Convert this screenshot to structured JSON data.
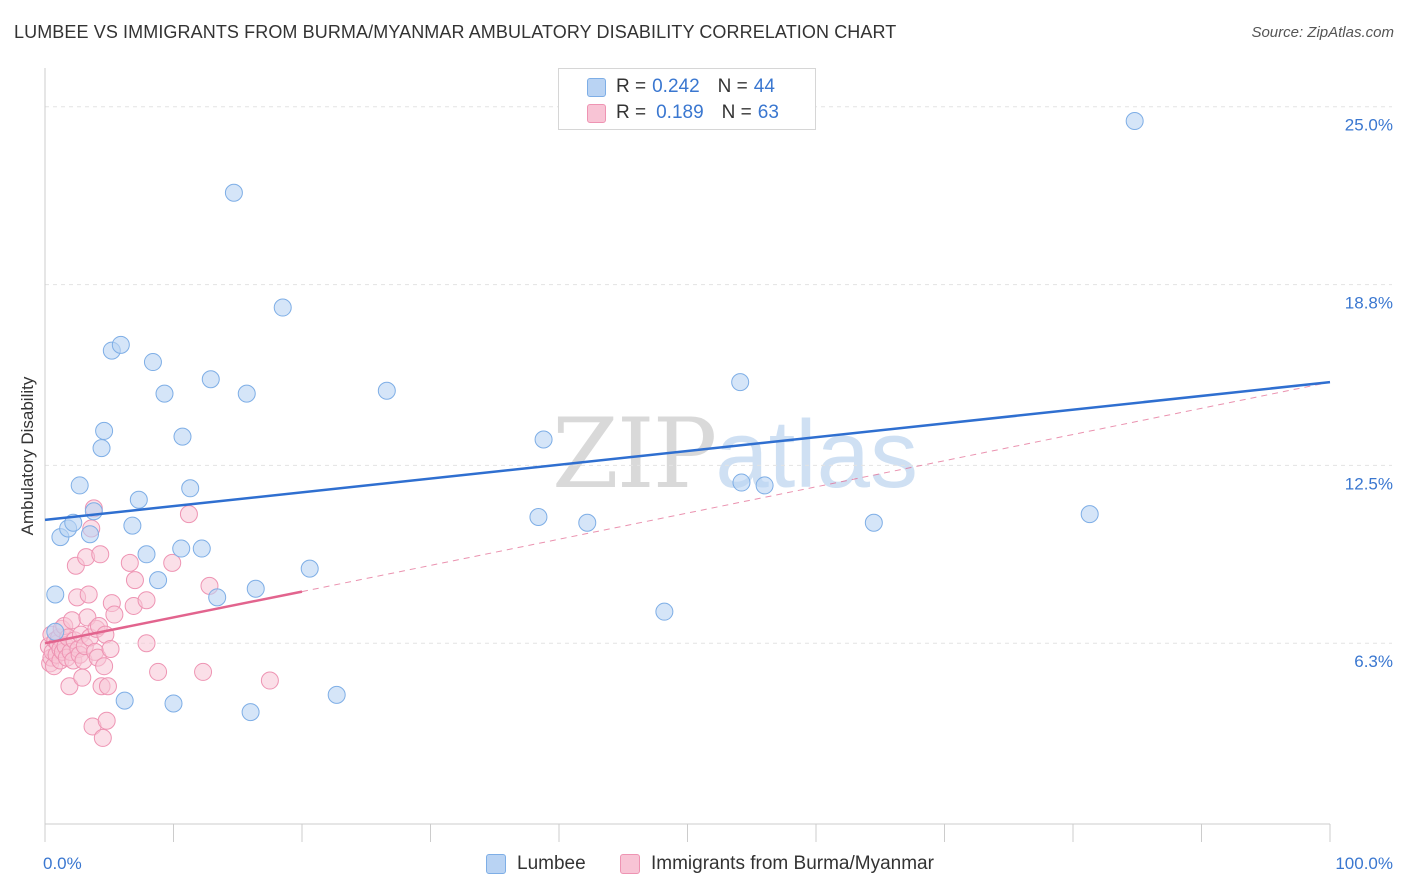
{
  "title": "LUMBEE VS IMMIGRANTS FROM BURMA/MYANMAR AMBULATORY DISABILITY CORRELATION CHART",
  "source": "Source: ZipAtlas.com",
  "watermark": {
    "zip": "ZIP",
    "atlas": "atlas"
  },
  "legend": {
    "r_label": "R =",
    "n_label": "N =",
    "rows": [
      {
        "r": "0.242",
        "n": "44"
      },
      {
        "r": "0.189",
        "n": "63"
      }
    ]
  },
  "colors": {
    "lumbee_fill": "#b9d3f3",
    "lumbee_stroke": "#7eaee6",
    "lumbee_line": "#2f6fd0",
    "burma_fill": "#f8c4d5",
    "burma_stroke": "#ee94b3",
    "burma_line": "#e2648e",
    "grid": "#e3e3e3",
    "axis_text": "#3a77d0"
  },
  "chart_data": {
    "type": "scatter",
    "title": "LUMBEE VS IMMIGRANTS FROM BURMA/MYANMAR AMBULATORY DISABILITY CORRELATION CHART",
    "xlabel": "",
    "ylabel": "Ambulatory Disability",
    "xlim": [
      0,
      100
    ],
    "ylim": [
      0,
      26
    ],
    "x_tick_labels": [
      "0.0%",
      "100.0%"
    ],
    "y_ticks": [
      6.3,
      12.5,
      18.8,
      25.0
    ],
    "y_tick_labels": [
      "6.3%",
      "12.5%",
      "18.8%",
      "25.0%"
    ],
    "grid": "horizontal dashed",
    "legend_position": "top-center",
    "series": [
      {
        "name": "Lumbee",
        "r": 0.242,
        "n": 44,
        "trend": {
          "x": [
            0,
            100
          ],
          "y": [
            10.6,
            15.4
          ]
        },
        "points": [
          [
            0.8,
            6.7
          ],
          [
            0.8,
            8.0
          ],
          [
            1.2,
            10.0
          ],
          [
            1.8,
            10.3
          ],
          [
            2.2,
            10.5
          ],
          [
            2.7,
            11.8
          ],
          [
            3.5,
            10.1
          ],
          [
            3.8,
            10.9
          ],
          [
            4.4,
            13.1
          ],
          [
            4.6,
            13.7
          ],
          [
            5.2,
            16.5
          ],
          [
            5.9,
            16.7
          ],
          [
            6.2,
            4.3
          ],
          [
            6.8,
            10.4
          ],
          [
            7.3,
            11.3
          ],
          [
            7.9,
            9.4
          ],
          [
            8.4,
            16.1
          ],
          [
            8.8,
            8.5
          ],
          [
            9.3,
            15.0
          ],
          [
            10.0,
            4.2
          ],
          [
            10.6,
            9.6
          ],
          [
            10.7,
            13.5
          ],
          [
            11.3,
            11.7
          ],
          [
            12.2,
            9.6
          ],
          [
            12.9,
            15.5
          ],
          [
            13.4,
            7.9
          ],
          [
            14.7,
            22.0
          ],
          [
            15.7,
            15.0
          ],
          [
            16.0,
            3.9
          ],
          [
            16.4,
            8.2
          ],
          [
            18.5,
            18.0
          ],
          [
            20.6,
            8.9
          ],
          [
            22.7,
            4.5
          ],
          [
            26.6,
            15.1
          ],
          [
            38.4,
            10.7
          ],
          [
            38.8,
            13.4
          ],
          [
            42.2,
            10.5
          ],
          [
            48.2,
            7.4
          ],
          [
            54.1,
            15.4
          ],
          [
            54.2,
            11.9
          ],
          [
            56.0,
            11.8
          ],
          [
            64.5,
            10.5
          ],
          [
            81.3,
            10.8
          ],
          [
            84.8,
            24.5
          ]
        ]
      },
      {
        "name": "Immigrants from Burma/Myanmar",
        "r": 0.189,
        "n": 63,
        "trend": {
          "x": [
            0,
            20
          ],
          "y": [
            6.3,
            8.1
          ]
        },
        "trend_extended": {
          "x": [
            20,
            100
          ],
          "y": [
            8.1,
            15.4
          ]
        },
        "points": [
          [
            0.3,
            6.2
          ],
          [
            0.4,
            5.6
          ],
          [
            0.5,
            6.6
          ],
          [
            0.5,
            5.8
          ],
          [
            0.6,
            6.0
          ],
          [
            0.7,
            5.5
          ],
          [
            0.8,
            6.4
          ],
          [
            0.9,
            5.9
          ],
          [
            1.0,
            6.3
          ],
          [
            1.1,
            6.5
          ],
          [
            1.2,
            5.7
          ],
          [
            1.2,
            6.1
          ],
          [
            1.3,
            6.8
          ],
          [
            1.4,
            6.0
          ],
          [
            1.5,
            6.9
          ],
          [
            1.6,
            6.2
          ],
          [
            1.7,
            5.8
          ],
          [
            1.8,
            6.5
          ],
          [
            1.9,
            4.8
          ],
          [
            2.0,
            6.0
          ],
          [
            2.1,
            7.1
          ],
          [
            2.2,
            5.7
          ],
          [
            2.3,
            6.4
          ],
          [
            2.4,
            9.0
          ],
          [
            2.5,
            7.9
          ],
          [
            2.6,
            6.1
          ],
          [
            2.7,
            5.9
          ],
          [
            2.8,
            6.6
          ],
          [
            2.9,
            5.1
          ],
          [
            3.0,
            5.7
          ],
          [
            3.1,
            6.2
          ],
          [
            3.2,
            9.3
          ],
          [
            3.3,
            7.2
          ],
          [
            3.4,
            8.0
          ],
          [
            3.5,
            6.5
          ],
          [
            3.6,
            10.3
          ],
          [
            3.7,
            3.4
          ],
          [
            3.8,
            11.0
          ],
          [
            3.9,
            6.0
          ],
          [
            4.0,
            6.8
          ],
          [
            4.1,
            5.8
          ],
          [
            4.2,
            6.9
          ],
          [
            4.3,
            9.4
          ],
          [
            4.4,
            4.8
          ],
          [
            4.5,
            3.0
          ],
          [
            4.6,
            5.5
          ],
          [
            4.7,
            6.6
          ],
          [
            4.8,
            3.6
          ],
          [
            4.9,
            4.8
          ],
          [
            5.1,
            6.1
          ],
          [
            5.2,
            7.7
          ],
          [
            5.4,
            7.3
          ],
          [
            6.6,
            9.1
          ],
          [
            6.9,
            7.6
          ],
          [
            7.0,
            8.5
          ],
          [
            7.9,
            7.8
          ],
          [
            7.9,
            6.3
          ],
          [
            8.8,
            5.3
          ],
          [
            9.9,
            9.1
          ],
          [
            11.2,
            10.8
          ],
          [
            12.3,
            5.3
          ],
          [
            12.8,
            8.3
          ],
          [
            17.5,
            5.0
          ]
        ]
      }
    ]
  }
}
